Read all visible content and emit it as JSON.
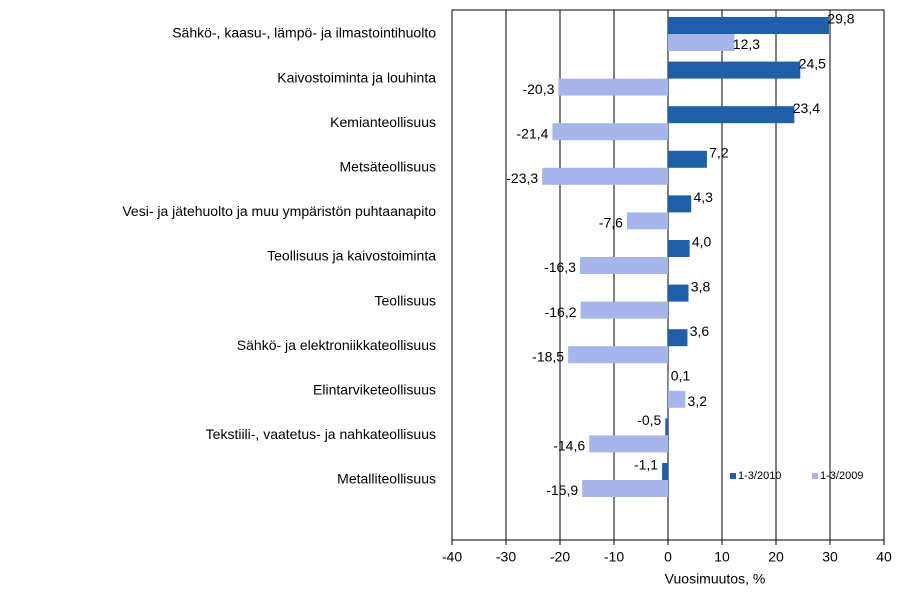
{
  "chart_data": {
    "type": "hbar",
    "xlabel": "Vuosimuutos, %",
    "categories": [
      "Sähkö-, kaasu-, lämpö- ja ilmastointihuolto",
      "Kaivostoiminta ja louhinta",
      "Kemianteollisuus",
      "Metsäteollisuus",
      "Vesi- ja jätehuolto ja muu ympäristön puhtaanapito",
      "Teollisuus ja kaivostoiminta",
      "Teollisuus",
      "Sähkö- ja elektroniikkateollisuus",
      "Elintarviketeollisuus",
      "Tekstiili-, vaatetus- ja nahkateollisuus",
      "Metalliteollisuus"
    ],
    "series": [
      {
        "name": "1-3/2010",
        "color": "#1f5fa8",
        "values": [
          29.8,
          24.5,
          23.4,
          7.2,
          4.3,
          4.0,
          3.8,
          3.6,
          0.1,
          -0.5,
          -1.1
        ],
        "value_labels": [
          "29,8",
          "24,5",
          "23,4",
          "7,2",
          "4,3",
          "4,0",
          "3,8",
          "3,6",
          "0,1",
          "-0,5",
          "-1,1"
        ]
      },
      {
        "name": "1-3/2009",
        "color": "#a6b6ea",
        "values": [
          12.3,
          -20.3,
          -21.4,
          -23.3,
          -7.6,
          -16.3,
          -16.2,
          -18.5,
          3.2,
          -14.6,
          -15.9
        ],
        "value_labels": [
          "12,3",
          "-20,3",
          "-21,4",
          "-23,3",
          "-7,6",
          "-16,3",
          "-16,2",
          "-18,5",
          "3,2",
          "-14,6",
          "-15,9"
        ]
      }
    ],
    "xlim": [
      -40,
      40
    ],
    "xticks": [
      -40,
      -30,
      -20,
      -10,
      0,
      10,
      20,
      30,
      40
    ],
    "grid": true,
    "legend": "lower right"
  }
}
